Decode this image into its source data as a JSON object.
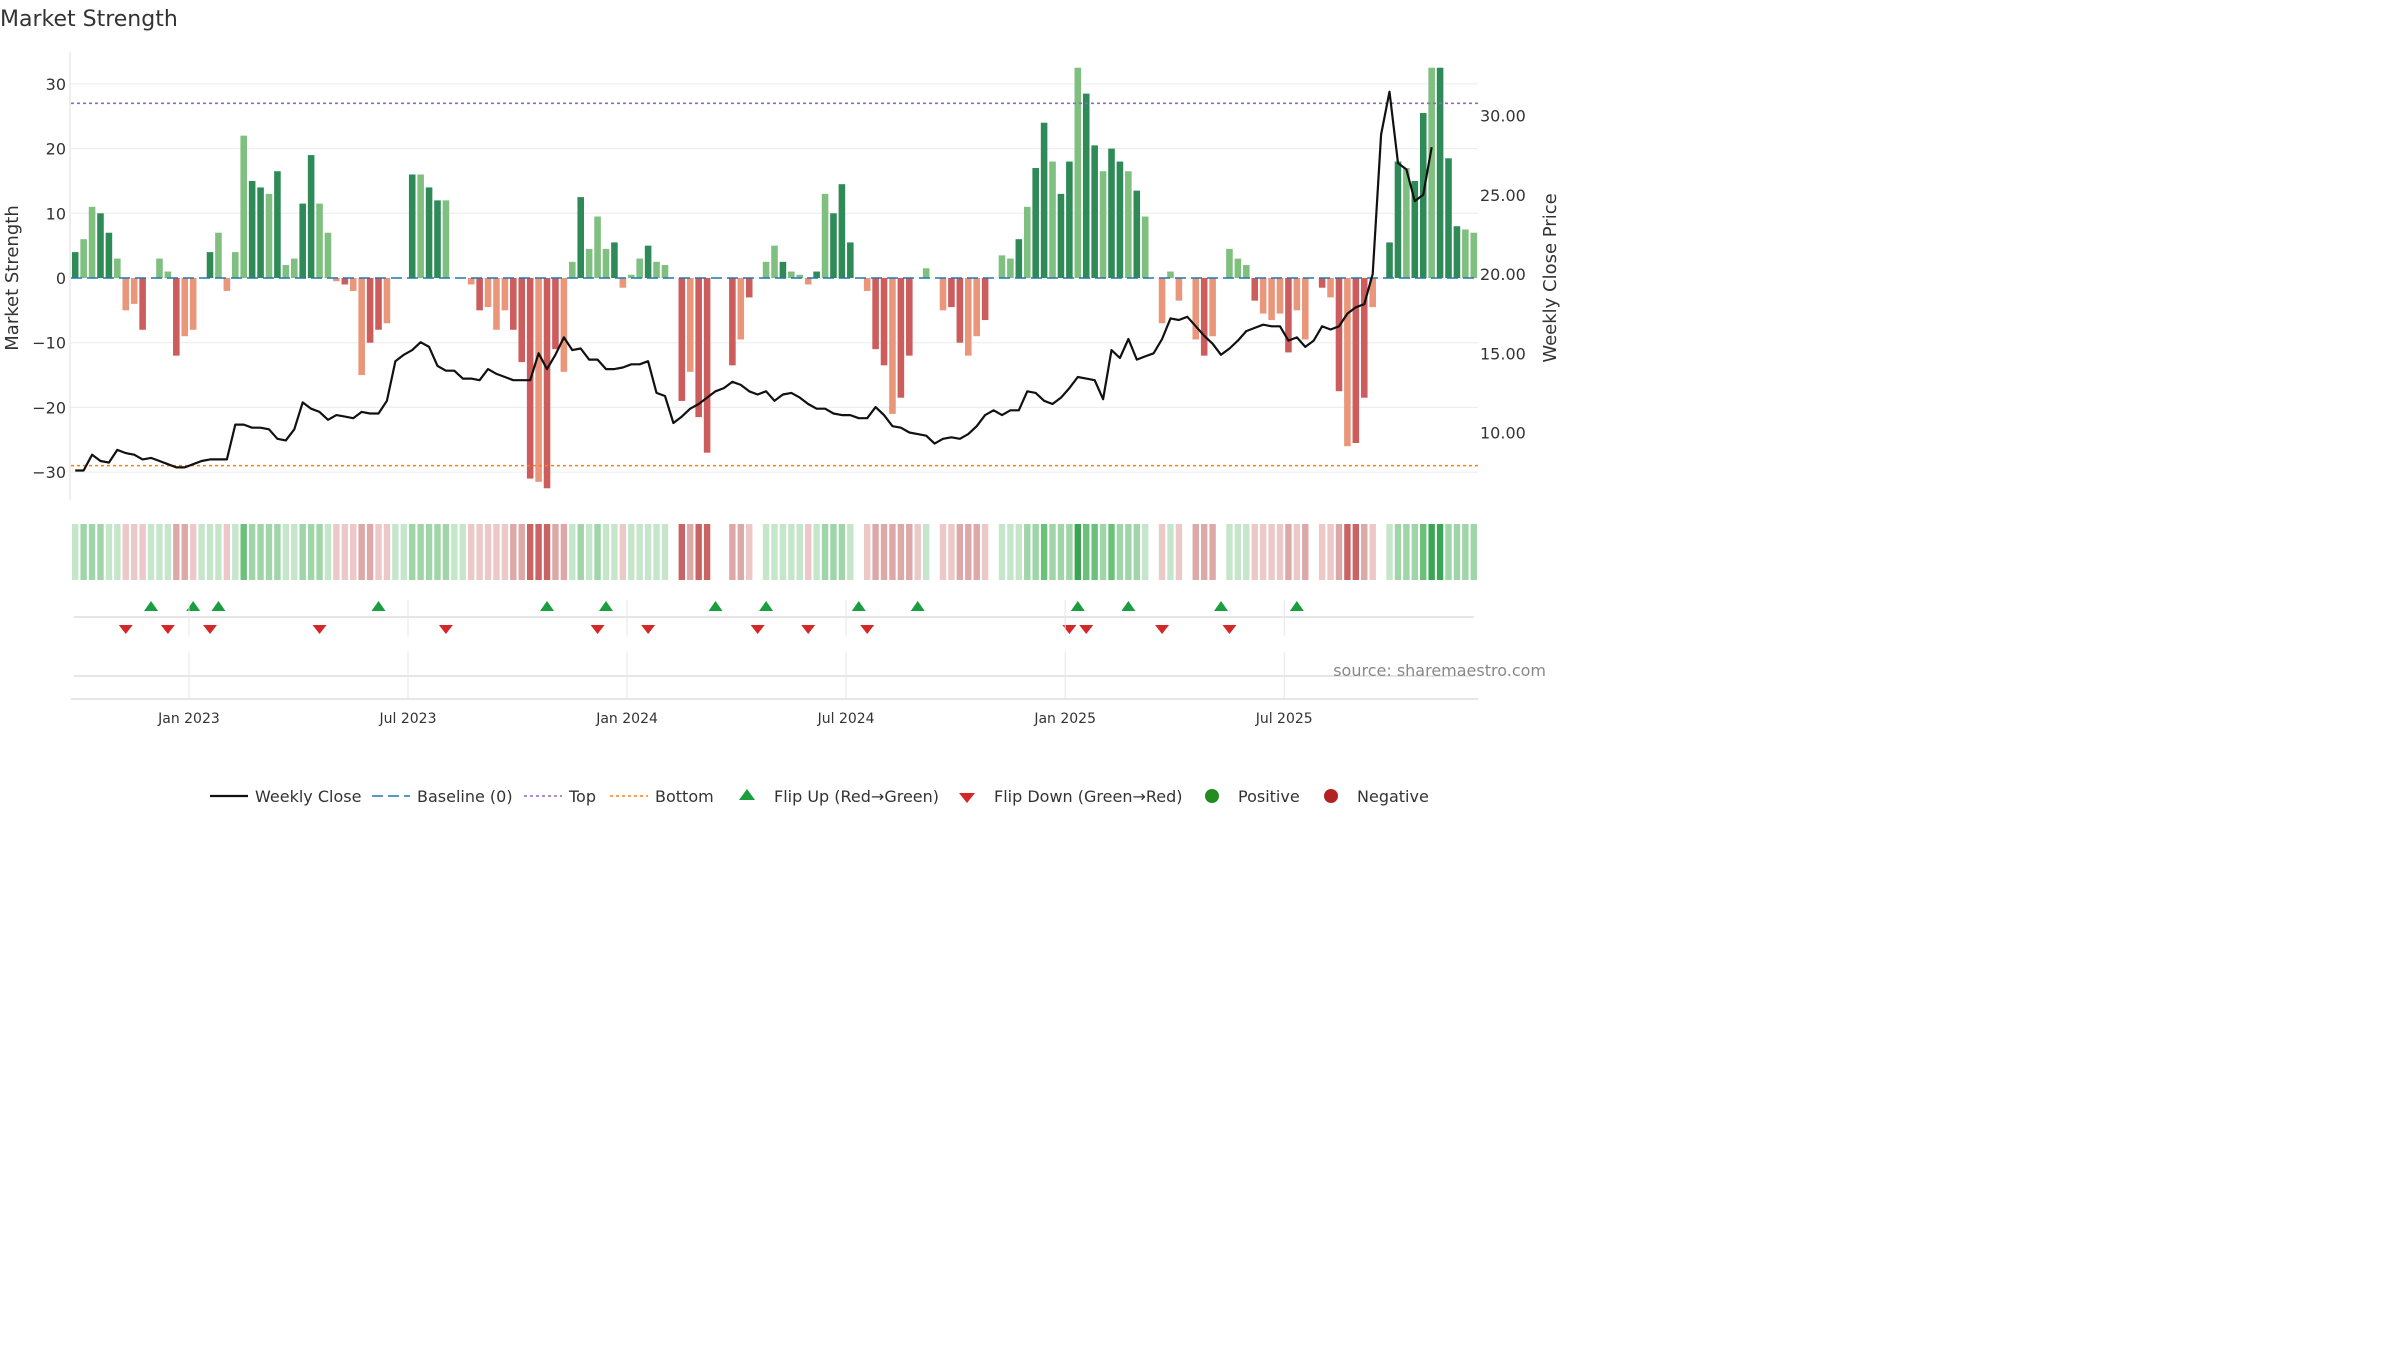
{
  "chart_data": {
    "type": "bar",
    "title": "Market Strength",
    "ylabel_left": "Market Strength",
    "ylabel_right": "Weekly Close Price",
    "ylim_left": [
      -35,
      35
    ],
    "ylim_right": [
      5,
      33
    ],
    "left_ticks": [
      {
        "v": 30,
        "label": "30"
      },
      {
        "v": 20,
        "label": "20"
      },
      {
        "v": 10,
        "label": "10"
      },
      {
        "v": 0,
        "label": "0"
      },
      {
        "v": -10,
        "label": "−10"
      },
      {
        "v": -20,
        "label": "−20"
      },
      {
        "v": -30,
        "label": "−30"
      }
    ],
    "right_ticks": [
      {
        "v": 30,
        "label": "30.00"
      },
      {
        "v": 25,
        "label": "25.00"
      },
      {
        "v": 20,
        "label": "20.00"
      },
      {
        "v": 15,
        "label": "15.00"
      },
      {
        "v": 10,
        "label": "10.00"
      }
    ],
    "x_ticks": [
      {
        "w": 14,
        "label": "Jan 2023"
      },
      {
        "w": 40,
        "label": "Jul 2023"
      },
      {
        "w": 66,
        "label": "Jan 2024"
      },
      {
        "w": 92,
        "label": "Jul 2024"
      },
      {
        "w": 118,
        "label": "Jan 2025"
      },
      {
        "w": 144,
        "label": "Jul 2025"
      }
    ],
    "top_line": 27,
    "bottom_line": -29,
    "strength": [
      4,
      6,
      11,
      10,
      7,
      3,
      -5,
      -4,
      -8,
      0,
      3,
      1,
      -12,
      -9,
      -8,
      0,
      4,
      7,
      -2,
      4,
      22,
      15,
      14,
      13,
      16.5,
      2,
      3,
      11.5,
      19,
      11.5,
      7,
      -0.5,
      -1,
      -2,
      -15,
      -10,
      -8,
      -7,
      0,
      0,
      16,
      16,
      14,
      12,
      12,
      0,
      0,
      -1,
      -5,
      -4.5,
      -8,
      -5,
      -8,
      -13,
      -31,
      -31.5,
      -32.5,
      -11,
      -14.5,
      2.5,
      12.5,
      4.5,
      9.5,
      4.5,
      5.5,
      -1.5,
      0.5,
      3,
      5,
      2.5,
      2,
      0,
      -19,
      -14.5,
      -21.5,
      -27,
      0,
      0,
      -13.5,
      -9.5,
      -3,
      0,
      2.5,
      5,
      2.5,
      1,
      0.5,
      -1,
      1,
      13,
      10,
      14.5,
      5.5,
      0,
      -2,
      -11,
      -13.5,
      -21,
      -18.5,
      -12,
      0,
      1.5,
      0,
      -5,
      -4.5,
      -10,
      -12,
      -9,
      -6.5,
      0,
      3.5,
      3,
      6,
      11,
      17,
      24,
      18,
      13,
      18,
      32.5,
      28.5,
      20.5,
      16.5,
      20,
      18,
      16.5,
      13.5,
      9.5,
      0,
      -7,
      1,
      -3.5,
      0,
      -9.5,
      -12,
      -9,
      0,
      4.5,
      3,
      2,
      -3.5,
      -5.5,
      -6.5,
      -5.5,
      -11.5,
      -5,
      -9.5,
      0,
      -1.5,
      -3,
      -17.5,
      -26,
      -25.5,
      -18.5,
      -4.5,
      0,
      5.5,
      18,
      17,
      15,
      25.5,
      32.5,
      32.5,
      18.5,
      8,
      7.5,
      7
    ],
    "weekly_close": [
      7.6,
      7.6,
      8.6,
      8.2,
      8.1,
      8.9,
      8.7,
      8.6,
      8.3,
      8.4,
      8.2,
      8.0,
      7.8,
      7.8,
      8.0,
      8.2,
      8.3,
      8.3,
      8.3,
      10.5,
      10.5,
      10.3,
      10.3,
      10.2,
      9.6,
      9.5,
      10.2,
      11.9,
      11.5,
      11.3,
      10.8,
      11.1,
      11.0,
      10.9,
      11.3,
      11.2,
      11.2,
      12.0,
      14.5,
      14.9,
      15.2,
      15.7,
      15.4,
      14.2,
      13.9,
      13.9,
      13.4,
      13.4,
      13.3,
      14.0,
      13.7,
      13.5,
      13.3,
      13.3,
      13.3,
      15.0,
      14.0,
      14.9,
      16.0,
      15.2,
      15.3,
      14.6,
      14.6,
      14.0,
      14.0,
      14.1,
      14.3,
      14.3,
      14.5,
      12.5,
      12.3,
      10.6,
      11.0,
      11.5,
      11.8,
      12.2,
      12.6,
      12.8,
      13.2,
      13.0,
      12.6,
      12.4,
      12.6,
      12.0,
      12.4,
      12.5,
      12.2,
      11.8,
      11.5,
      11.5,
      11.2,
      11.1,
      11.1,
      10.9,
      10.9,
      11.6,
      11.1,
      10.4,
      10.3,
      10.0,
      9.9,
      9.8,
      9.3,
      9.6,
      9.7,
      9.6,
      9.9,
      10.4,
      11.1,
      11.4,
      11.1,
      11.4,
      11.4,
      12.6,
      12.5,
      12.0,
      11.8,
      12.2,
      12.8,
      13.5,
      13.4,
      13.3,
      12.1,
      15.2,
      14.7,
      15.9,
      14.6,
      14.8,
      15.0,
      15.9,
      17.2,
      17.1,
      17.3,
      16.7,
      16.1,
      15.6,
      14.9,
      15.3,
      15.8,
      16.4,
      16.6,
      16.8,
      16.7,
      16.7,
      15.8,
      16.0,
      15.4,
      15.8,
      16.7,
      16.5,
      16.7,
      17.5,
      17.9,
      18.1,
      20.0,
      28.8,
      31.5,
      27.0,
      26.6,
      24.6,
      25.0,
      28.0
    ],
    "band_levels": [
      1,
      2,
      2,
      2,
      1,
      1,
      -1,
      -1,
      -1,
      1,
      1,
      1,
      -2,
      -2,
      -1,
      1,
      1,
      1,
      -1,
      1,
      3,
      2,
      2,
      2,
      2,
      1,
      1,
      2,
      2,
      2,
      1,
      -1,
      -1,
      -1,
      -2,
      -2,
      -1,
      -1,
      1,
      1,
      2,
      2,
      2,
      2,
      2,
      1,
      1,
      -1,
      -1,
      -1,
      -1,
      -1,
      -2,
      -2,
      -3,
      -3,
      -3,
      -2,
      -2,
      1,
      2,
      1,
      2,
      1,
      1,
      -1,
      1,
      1,
      1,
      1,
      1,
      0,
      -3,
      -2,
      -3,
      -3,
      0,
      0,
      -2,
      -2,
      -1,
      0,
      1,
      1,
      1,
      1,
      1,
      -1,
      1,
      2,
      2,
      2,
      1,
      0,
      -1,
      -2,
      -2,
      -2,
      -2,
      -2,
      -1,
      1,
      0,
      -1,
      -1,
      -2,
      -2,
      -2,
      -1,
      0,
      1,
      1,
      1,
      2,
      2,
      3,
      2,
      2,
      2,
      4,
      3,
      3,
      2,
      3,
      2,
      2,
      2,
      1,
      0,
      -1,
      1,
      -1,
      0,
      -2,
      -2,
      -2,
      0,
      1,
      1,
      1,
      -1,
      -1,
      -1,
      -1,
      -2,
      -1,
      -2,
      0,
      -1,
      -1,
      -2,
      -3,
      -3,
      -2,
      -1,
      0,
      1,
      2,
      2,
      2,
      3,
      4,
      4,
      2,
      2,
      2,
      2
    ],
    "flip_up_weeks": [
      9,
      14,
      17,
      36,
      56,
      63,
      76,
      82,
      93,
      100,
      119,
      125,
      136,
      145
    ],
    "flip_down_weeks": [
      6,
      11,
      16,
      29,
      44,
      62,
      68,
      81,
      87,
      94,
      118,
      120,
      129,
      137
    ],
    "legend": [
      {
        "label": "Weekly Close",
        "kind": "line"
      },
      {
        "label": "Baseline (0)",
        "kind": "dash-blue"
      },
      {
        "label": "Top",
        "kind": "dot-purple"
      },
      {
        "label": "Bottom",
        "kind": "dot-orange"
      },
      {
        "label": "Flip Up (Red→Green)",
        "kind": "tri-up"
      },
      {
        "label": "Flip Down (Green→Red)",
        "kind": "tri-down"
      },
      {
        "label": "Positive",
        "kind": "dot-green"
      },
      {
        "label": "Negative",
        "kind": "dot-red"
      }
    ]
  },
  "source_text": "source: sharemaestro.com",
  "colors": {
    "pos_strong": "#2e8b57",
    "pos_light": "#7fbf7f",
    "neg_strong": "#cd5c5c",
    "neg_light": "#e9967a",
    "close_line": "#111111",
    "baseline": "#1f77b4",
    "top_line": "#9467bd",
    "bottom_line": "#ff7f0e",
    "flip_up": "#1a9e3f",
    "flip_down": "#d62728",
    "legend_pos": "#228b22",
    "legend_neg": "#b22222"
  }
}
